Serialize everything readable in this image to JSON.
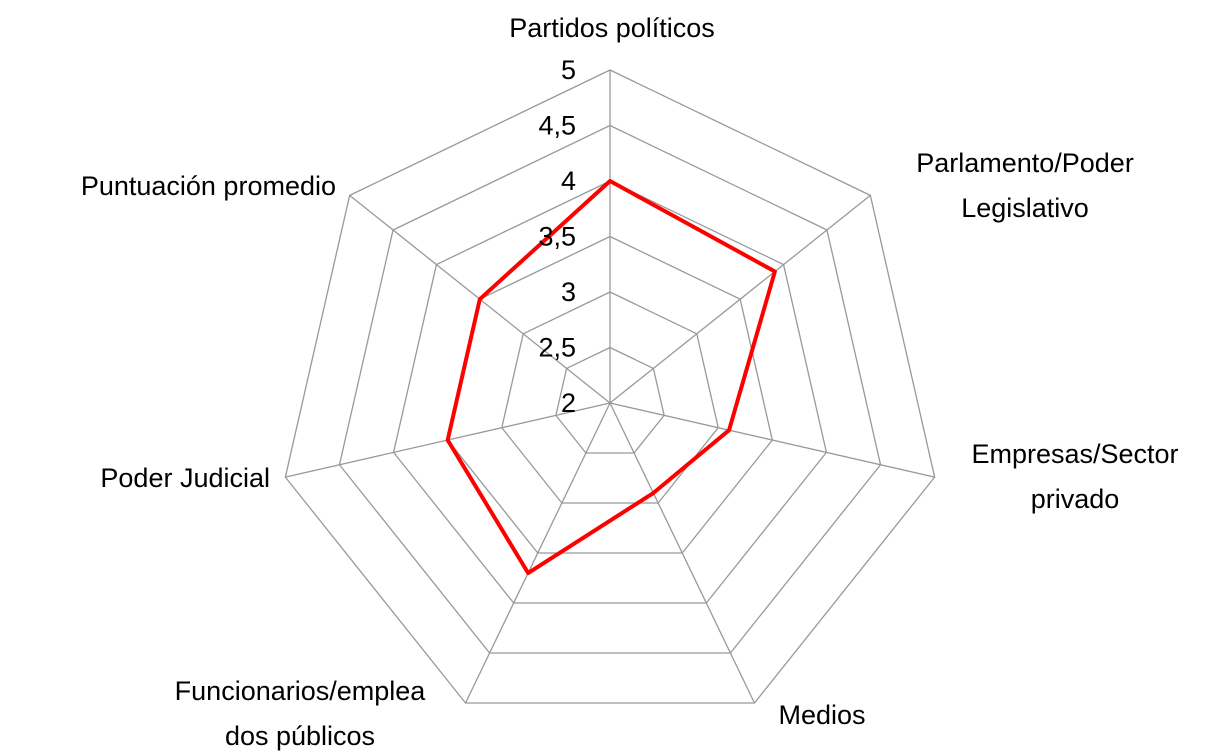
{
  "chart_data": {
    "type": "radar",
    "categories": [
      [
        "Partidos políticos"
      ],
      [
        "Parlamento/Poder",
        "Legislativo"
      ],
      [
        "Empresas/Sector",
        "privado"
      ],
      [
        "Medios"
      ],
      [
        "Funcionarios/emplea",
        "dos públicos"
      ],
      [
        "Poder Judicial"
      ],
      [
        "Puntuación promedio"
      ]
    ],
    "series": [
      {
        "color": "#ff0000",
        "values": [
          4,
          3.9,
          3.1,
          2.9,
          3.7,
          3.5,
          3.5
        ]
      }
    ],
    "ylim": [
      2,
      5
    ],
    "yticks": [
      2,
      {
        "value": 2.5,
        "label": "2,5"
      },
      3,
      {
        "value": 3.5,
        "label": "3,5"
      },
      4,
      {
        "value": 4.5,
        "label": "4,5"
      },
      5
    ],
    "grid": true
  }
}
